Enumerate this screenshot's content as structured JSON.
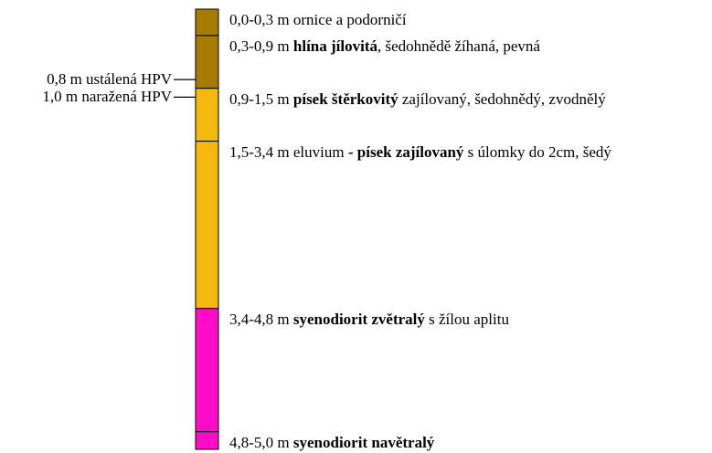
{
  "layers": [
    {
      "depth": "0,0-0,3 m",
      "from": 0.0,
      "to": 0.3,
      "color": "#a67c00",
      "description": [
        {
          "text": "ornice a podorničí",
          "bold": false
        }
      ]
    },
    {
      "depth": "0,3-0,9 m",
      "from": 0.3,
      "to": 0.9,
      "color": "#a67c00",
      "description": [
        {
          "text": "hlína jílovitá",
          "bold": true
        },
        {
          "text": ", šedohnědě žíhaná, pevná",
          "bold": false
        }
      ]
    },
    {
      "depth": "0,9-1,5 m",
      "from": 0.9,
      "to": 1.5,
      "color": "#f5b80c",
      "description": [
        {
          "text": "písek štěrkovitý",
          "bold": true
        },
        {
          "text": " zajílovaný, šedohnědý, zvodnělý",
          "bold": false
        }
      ]
    },
    {
      "depth": "1,5-3,4 m",
      "from": 1.5,
      "to": 3.4,
      "color": "#f5b80c",
      "description": [
        {
          "text": "eluvium ",
          "bold": false
        },
        {
          "text": "- písek zajílovaný",
          "bold": true
        },
        {
          "text": " s úlomky do 2cm, šedý",
          "bold": false
        }
      ]
    },
    {
      "depth": "3,4-4,8 m",
      "from": 3.4,
      "to": 4.8,
      "color": "#ff0cc8",
      "description": [
        {
          "text": "syenodiorit zvětralý",
          "bold": true
        },
        {
          "text": " s žílou aplitu",
          "bold": false
        }
      ]
    },
    {
      "depth": "4,8-5,0 m",
      "from": 4.8,
      "to": 5.0,
      "color": "#ff0cc8",
      "description": [
        {
          "text": "syenodiorit navětralý",
          "bold": true
        }
      ]
    }
  ],
  "water_levels": [
    {
      "label": "0,8 m ustálená HPV",
      "depth": 0.8
    },
    {
      "label": "1,0 m naražená HPV",
      "depth": 1.0
    }
  ]
}
